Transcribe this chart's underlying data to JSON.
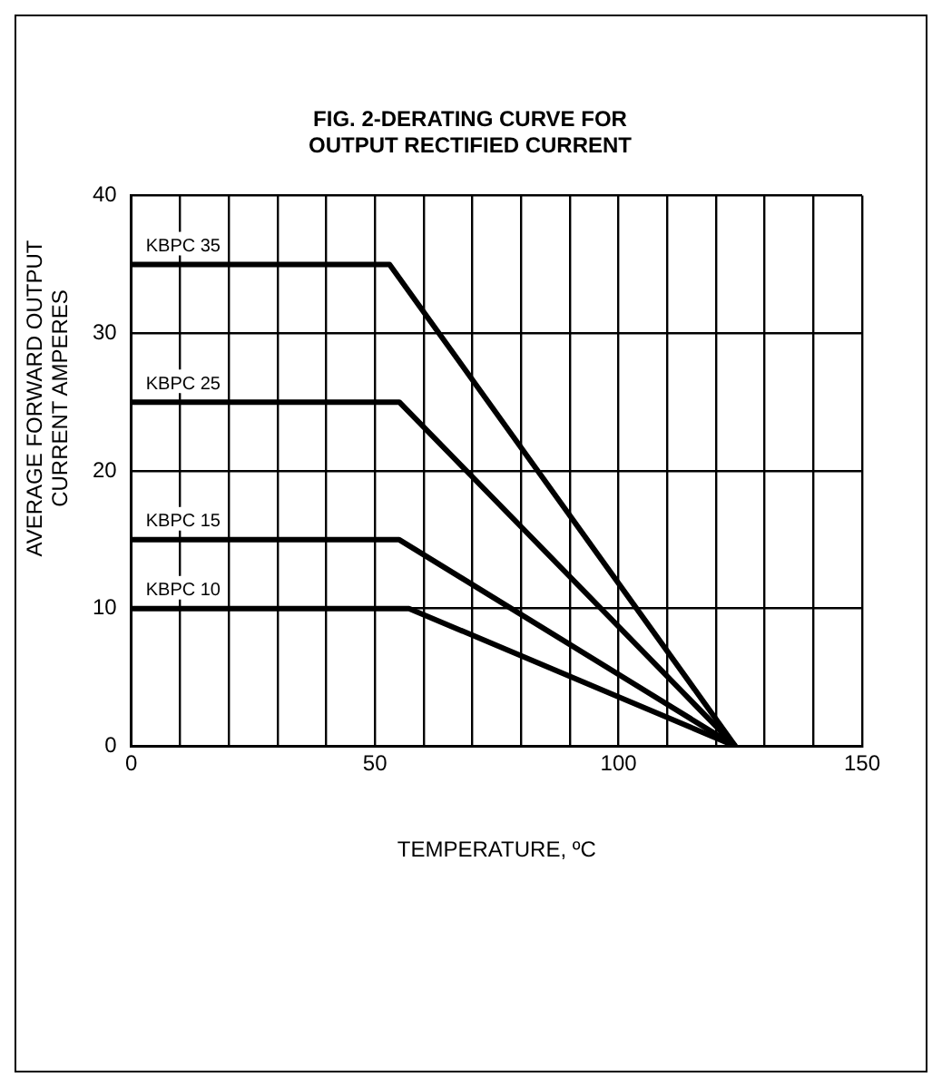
{
  "chart_data": {
    "type": "line",
    "title": "FIG. 2-DERATING CURVE FOR OUTPUT RECTIFIED CURRENT",
    "xlabel": "TEMPERATURE, ºC",
    "ylabel": "AVERAGE FORWARD OUTPUT CURRENT AMPERES",
    "series": [
      {
        "name": "KBPC 35",
        "color": "#000000",
        "x": [
          0,
          53,
          124
        ],
        "values": [
          35,
          35,
          0
        ]
      },
      {
        "name": "KBPC 25",
        "color": "#000000",
        "x": [
          0,
          55,
          124
        ],
        "values": [
          25,
          25,
          0
        ]
      },
      {
        "name": "KBPC 15",
        "color": "#000000",
        "x": [
          0,
          55,
          124
        ],
        "values": [
          15,
          15,
          0
        ]
      },
      {
        "name": "KBPC 10",
        "color": "#000000",
        "x": [
          0,
          57,
          124
        ],
        "values": [
          10,
          10,
          0
        ]
      }
    ],
    "xlim": [
      0,
      150
    ],
    "xticks": [
      0,
      {
        "value": 10,
        "label": null
      },
      {
        "value": 20,
        "label": null
      },
      {
        "value": 30,
        "label": null
      },
      {
        "value": 40,
        "label": null
      },
      50,
      {
        "value": 60,
        "label": null
      },
      {
        "value": 70,
        "label": null
      },
      {
        "value": 80,
        "label": null
      },
      {
        "value": 90,
        "label": null
      },
      100,
      {
        "value": 110,
        "label": null
      },
      {
        "value": 120,
        "label": null
      },
      {
        "value": 130,
        "label": null
      },
      {
        "value": 140,
        "label": null
      },
      150
    ],
    "ylim": [
      0,
      40
    ],
    "yticks": [
      0,
      10,
      20,
      30,
      40
    ],
    "grid": true,
    "legend": false,
    "marker": "none",
    "line_style": "solid"
  }
}
